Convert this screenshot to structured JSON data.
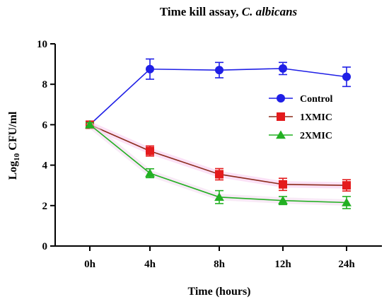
{
  "chart_data": {
    "type": "line",
    "title": {
      "plain": "Time kill assay, ",
      "italic": "C. albicans"
    },
    "xlabel": "Time (hours)",
    "ylabel": {
      "prefix": "Log",
      "subscript": "10",
      "suffix": " CFU/ml"
    },
    "categories": [
      "0h",
      "4h",
      "8h",
      "12h",
      "24h"
    ],
    "ylim": [
      0,
      10
    ],
    "yticks": [
      0,
      2,
      4,
      6,
      8,
      10
    ],
    "legend_position": "top-right",
    "series": [
      {
        "name": "Control",
        "marker": "circle",
        "marker_color": "#1f1fe6",
        "line_color": "#1f1fe6",
        "values": [
          6.0,
          8.75,
          8.7,
          8.78,
          8.37
        ],
        "errors": [
          0.1,
          0.5,
          0.38,
          0.3,
          0.48
        ]
      },
      {
        "name": "1XMIC",
        "marker": "square",
        "marker_color": "#e41a1c",
        "line_color": "#8b2a1a",
        "values": [
          6.0,
          4.7,
          3.55,
          3.05,
          3.0
        ],
        "errors": [
          0.1,
          0.25,
          0.28,
          0.3,
          0.28
        ]
      },
      {
        "name": "2XMIC",
        "marker": "triangle",
        "marker_color": "#22b022",
        "line_color": "#22b022",
        "values": [
          6.0,
          3.6,
          2.42,
          2.25,
          2.15
        ],
        "errors": [
          0.1,
          0.22,
          0.32,
          0.2,
          0.3
        ]
      }
    ]
  }
}
